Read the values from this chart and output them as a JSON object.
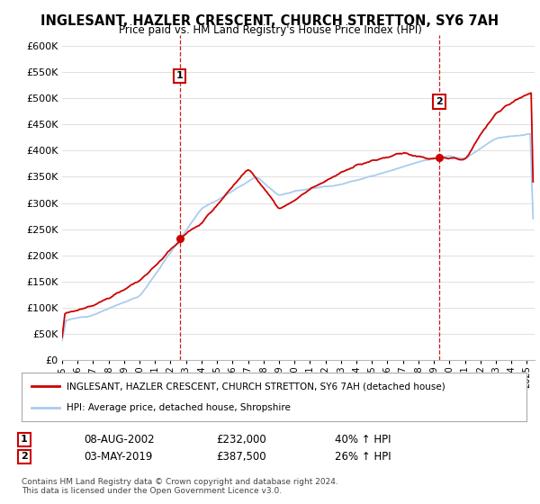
{
  "title": "INGLESANT, HAZLER CRESCENT, CHURCH STRETTON, SY6 7AH",
  "subtitle": "Price paid vs. HM Land Registry's House Price Index (HPI)",
  "legend_line1": "INGLESANT, HAZLER CRESCENT, CHURCH STRETTON, SY6 7AH (detached house)",
  "legend_line2": "HPI: Average price, detached house, Shropshire",
  "footer": "Contains HM Land Registry data © Crown copyright and database right 2024.\nThis data is licensed under the Open Government Licence v3.0.",
  "sale1_label": "1",
  "sale1_date": "08-AUG-2002",
  "sale1_price": "£232,000",
  "sale1_hpi": "40% ↑ HPI",
  "sale1_year": 2002.6,
  "sale1_value": 232000,
  "sale2_label": "2",
  "sale2_date": "03-MAY-2019",
  "sale2_price": "£387,500",
  "sale2_hpi": "26% ↑ HPI",
  "sale2_year": 2019.35,
  "sale2_value": 387500,
  "hpi_color": "#aaccee",
  "sale_color": "#cc0000",
  "vline_color": "#cc0000",
  "background_color": "#ffffff",
  "grid_color": "#e0e0e0",
  "ylim": [
    0,
    620000
  ],
  "xlim_start": 1995.0,
  "xlim_end": 2025.5
}
